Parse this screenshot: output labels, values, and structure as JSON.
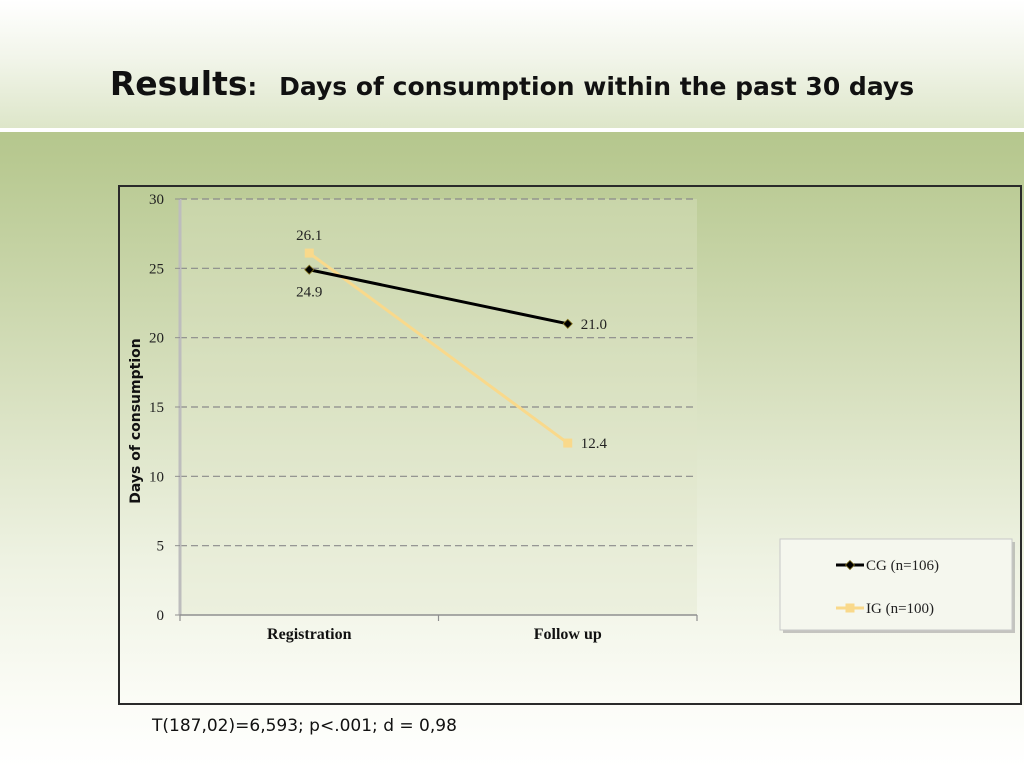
{
  "slide": {
    "title_main": "Results",
    "title_colon": ":",
    "title_sub": "Days of consumption within the past 30 days",
    "footnote": "T(187,02)=6,593; p<.001; d = 0,98"
  },
  "chart_data": {
    "type": "line",
    "categories": [
      "Registration",
      "Follow up"
    ],
    "ylabel": "Days of consumption",
    "xlabel": "",
    "ylim": [
      0,
      30
    ],
    "yticks": [
      0,
      5,
      10,
      15,
      20,
      25,
      30
    ],
    "grid": "horizontal dashed",
    "legend_position": "right",
    "series": [
      {
        "name": "CG (n=106)",
        "values": [
          24.9,
          21.0
        ],
        "labels": [
          "24.9",
          "21.0"
        ],
        "color": "#000000",
        "marker": "diamond"
      },
      {
        "name": "IG (n=100)",
        "values": [
          26.1,
          12.4
        ],
        "labels": [
          "26.1",
          "12.4"
        ],
        "color": "#f9d98b",
        "marker": "square"
      }
    ]
  }
}
